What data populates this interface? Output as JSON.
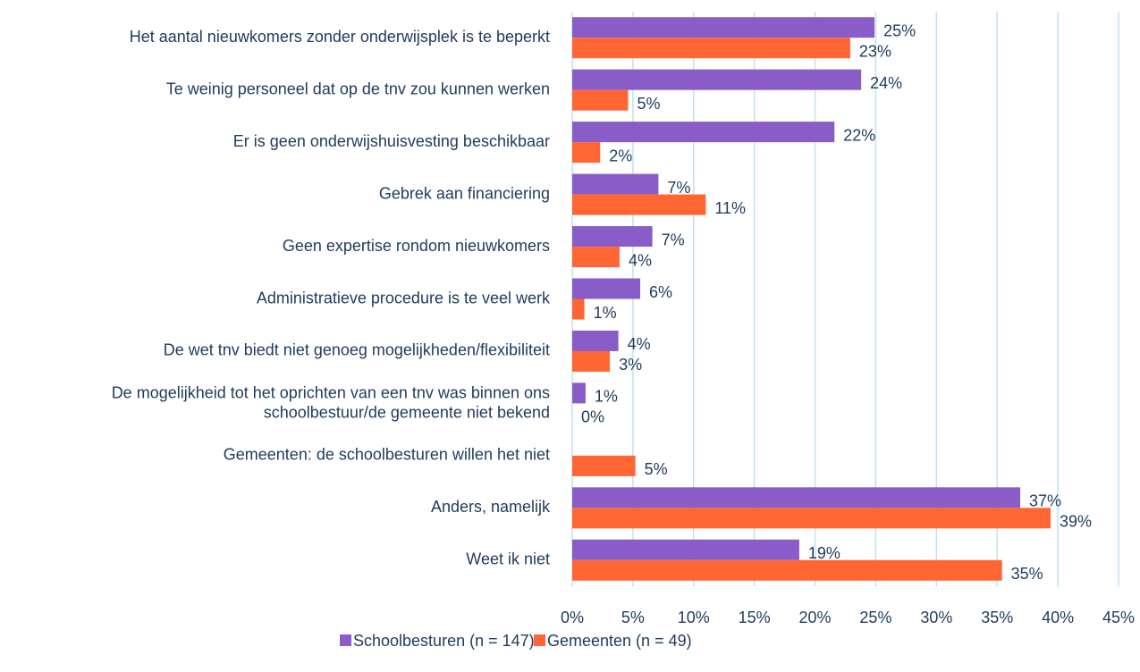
{
  "chart_data": {
    "type": "hbar",
    "categories": [
      "Het aantal nieuwkomers zonder onderwijsplek is te beperkt",
      "Te weinig personeel dat op de tnv zou kunnen werken",
      "Er is geen onderwijshuisvesting beschikbaar",
      "Gebrek aan financiering",
      "Geen expertise rondom nieuwkomers",
      "Administratieve procedure is te veel werk",
      "De wet tnv biedt niet genoeg mogelijkheden/flexibiliteit",
      "De mogelijkheid tot het oprichten van een tnv was binnen ons\nschoolbestuur/de gemeente niet bekend",
      "Gemeenten: de schoolbesturen willen het niet",
      "Anders, namelijk",
      "Weet ik niet"
    ],
    "series": [
      {
        "name": "Schoolbesturen (n = 147)",
        "color": "#8a5cc7",
        "values": [
          24.9,
          23.8,
          21.6,
          7.1,
          6.6,
          5.6,
          3.8,
          1.1,
          null,
          36.9,
          18.7
        ],
        "value_labels": [
          "25%",
          "24%",
          "22%",
          "7%",
          "7%",
          "6%",
          "4%",
          "1%",
          null,
          "37%",
          "19%"
        ]
      },
      {
        "name": "Gemeenten (n = 49)",
        "color": "#ff6633",
        "values": [
          22.9,
          4.6,
          2.3,
          11.0,
          3.9,
          1.0,
          3.1,
          0,
          5.2,
          39.4,
          35.4
        ],
        "value_labels": [
          "23%",
          "5%",
          "2%",
          "11%",
          "4%",
          "1%",
          "3%",
          "0%",
          "5%",
          "39%",
          "35%"
        ]
      }
    ],
    "xlim": [
      0,
      45
    ],
    "xticks": [
      {
        "value": 0,
        "label": "0%"
      },
      {
        "value": 5,
        "label": "5%"
      },
      {
        "value": 10,
        "label": "10%"
      },
      {
        "value": 15,
        "label": "15%"
      },
      {
        "value": 20,
        "label": "20%"
      },
      {
        "value": 25,
        "label": "25%"
      },
      {
        "value": 30,
        "label": "30%"
      },
      {
        "value": 35,
        "label": "35%"
      },
      {
        "value": 40,
        "label": "40%"
      },
      {
        "value": 45,
        "label": "45%"
      }
    ],
    "grid": true,
    "legend": "bottom"
  }
}
